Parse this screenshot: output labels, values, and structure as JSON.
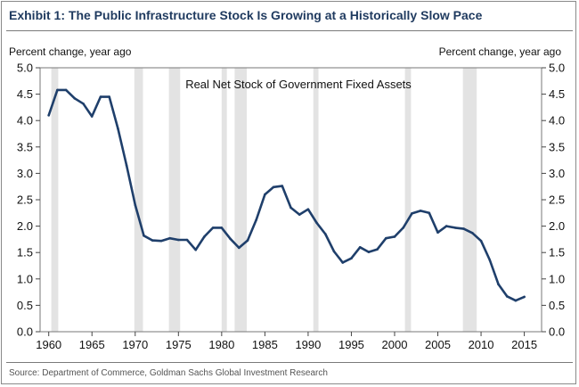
{
  "title": "Exhibit 1: The Public Infrastructure Stock Is Growing at a Historically Slow Pace",
  "source": "Source: Department of Commerce, Goldman Sachs Global Investment Research",
  "chart_data": {
    "type": "line",
    "title": "Real Net Stock of Government Fixed Assets",
    "ylabel_left": "Percent change, year ago",
    "ylabel_right": "Percent change, year ago",
    "xlim": [
      1959,
      2017
    ],
    "ylim": [
      0.0,
      5.0
    ],
    "x_ticks": [
      1960,
      1965,
      1970,
      1975,
      1980,
      1985,
      1990,
      1995,
      2000,
      2005,
      2010,
      2015
    ],
    "y_ticks": [
      "0.0",
      "0.5",
      "1.0",
      "1.5",
      "2.0",
      "2.5",
      "3.0",
      "3.5",
      "4.0",
      "4.5",
      "5.0"
    ],
    "line_color": "#1f3f6b",
    "recession_color": "#e3e3e3",
    "recessions": [
      [
        1960.3,
        1961.1
      ],
      [
        1969.9,
        1970.9
      ],
      [
        1973.9,
        1975.2
      ],
      [
        1980.0,
        1980.6
      ],
      [
        1981.5,
        1982.9
      ],
      [
        1990.6,
        1991.2
      ],
      [
        2001.2,
        2001.9
      ],
      [
        2007.9,
        2009.5
      ]
    ],
    "series": [
      {
        "name": "Real Net Stock of Government Fixed Assets",
        "x": [
          1960,
          1961,
          1962,
          1963,
          1964,
          1965,
          1966,
          1967,
          1968,
          1969,
          1970,
          1971,
          1972,
          1973,
          1974,
          1975,
          1976,
          1977,
          1978,
          1979,
          1980,
          1981,
          1982,
          1983,
          1984,
          1985,
          1986,
          1987,
          1988,
          1989,
          1990,
          1991,
          1992,
          1993,
          1994,
          1995,
          1996,
          1997,
          1998,
          1999,
          2000,
          2001,
          2002,
          2003,
          2004,
          2005,
          2006,
          2007,
          2008,
          2009,
          2010,
          2011,
          2012,
          2013,
          2014,
          2015
        ],
        "values": [
          4.1,
          4.58,
          4.58,
          4.42,
          4.32,
          4.08,
          4.45,
          4.45,
          3.85,
          3.15,
          2.4,
          1.82,
          1.73,
          1.72,
          1.77,
          1.74,
          1.74,
          1.55,
          1.8,
          1.97,
          1.97,
          1.76,
          1.59,
          1.73,
          2.12,
          2.6,
          2.74,
          2.76,
          2.35,
          2.22,
          2.32,
          2.06,
          1.85,
          1.52,
          1.31,
          1.39,
          1.6,
          1.51,
          1.56,
          1.77,
          1.8,
          1.97,
          2.24,
          2.29,
          2.25,
          1.88,
          2.0,
          1.97,
          1.95,
          1.87,
          1.72,
          1.36,
          0.9,
          0.67,
          0.59,
          0.66
        ]
      }
    ]
  }
}
